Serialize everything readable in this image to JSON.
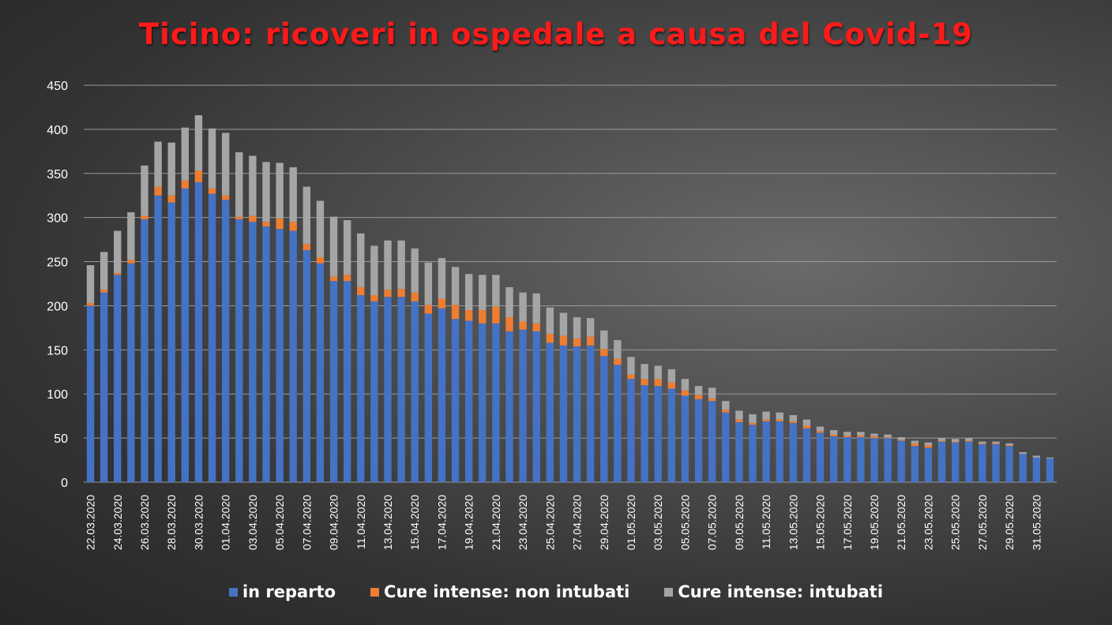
{
  "colors": {
    "title": "#ff1a1a",
    "grid": "#9a9a9a",
    "axis_text": "#ffffff",
    "in_reparto": "#4472c4",
    "non_intubati": "#ed7d31",
    "intubati": "#a5a5a5"
  },
  "chart_data": {
    "type": "bar",
    "stacked": true,
    "title": "Ticino: ricoveri in ospedale a causa del Covid-19",
    "xlabel": "",
    "ylabel": "",
    "ylim": [
      0,
      450
    ],
    "yticks": [
      0,
      50,
      100,
      150,
      200,
      250,
      300,
      350,
      400,
      450
    ],
    "grid": true,
    "legend_position": "bottom",
    "x_tick_labels": [
      "22.03.2020",
      "24.03.2020",
      "26.03.2020",
      "28.03.2020",
      "30.03.2020",
      "01.04.2020",
      "03.04.2020",
      "05.04.2020",
      "07.04.2020",
      "09.04.2020",
      "11.04.2020",
      "13.04.2020",
      "15.04.2020",
      "17.04.2020",
      "19.04.2020",
      "21.04.2020",
      "23.04.2020",
      "25.04.2020",
      "27.04.2020",
      "29.04.2020",
      "01.05.2020",
      "03.05.2020",
      "05.05.2020",
      "07.05.2020",
      "09.05.2020",
      "11.05.2020",
      "13.05.2020",
      "15.05.2020",
      "17.05.2020",
      "19.05.2020",
      "21.05.2020",
      "23.05.2020",
      "25.05.2020",
      "27.05.2020",
      "29.05.2020",
      "31.05.2020"
    ],
    "categories": [
      "22.03.2020",
      "23.03.2020",
      "24.03.2020",
      "25.03.2020",
      "26.03.2020",
      "27.03.2020",
      "28.03.2020",
      "29.03.2020",
      "30.03.2020",
      "31.03.2020",
      "01.04.2020",
      "02.04.2020",
      "03.04.2020",
      "04.04.2020",
      "05.04.2020",
      "06.04.2020",
      "07.04.2020",
      "08.04.2020",
      "09.04.2020",
      "10.04.2020",
      "11.04.2020",
      "12.04.2020",
      "13.04.2020",
      "14.04.2020",
      "15.04.2020",
      "16.04.2020",
      "17.04.2020",
      "18.04.2020",
      "19.04.2020",
      "20.04.2020",
      "21.04.2020",
      "22.04.2020",
      "23.04.2020",
      "24.04.2020",
      "25.04.2020",
      "26.04.2020",
      "27.04.2020",
      "28.04.2020",
      "29.04.2020",
      "30.04.2020",
      "01.05.2020",
      "02.05.2020",
      "03.05.2020",
      "04.05.2020",
      "05.05.2020",
      "06.05.2020",
      "07.05.2020",
      "08.05.2020",
      "09.05.2020",
      "10.05.2020",
      "11.05.2020",
      "12.05.2020",
      "13.05.2020",
      "14.05.2020",
      "15.05.2020",
      "16.05.2020",
      "17.05.2020",
      "18.05.2020",
      "19.05.2020",
      "20.05.2020",
      "21.05.2020",
      "22.05.2020",
      "23.05.2020",
      "24.05.2020",
      "25.05.2020",
      "26.05.2020",
      "27.05.2020",
      "28.05.2020",
      "29.05.2020",
      "30.05.2020",
      "31.05.2020",
      "01.06.2020"
    ],
    "series": [
      {
        "name": "in reparto",
        "values": [
          200,
          215,
          235,
          248,
          298,
          325,
          317,
          333,
          340,
          327,
          320,
          298,
          295,
          290,
          287,
          285,
          263,
          248,
          228,
          228,
          212,
          205,
          210,
          210,
          205,
          191,
          197,
          185,
          183,
          180,
          180,
          171,
          173,
          171,
          158,
          155,
          154,
          155,
          143,
          133,
          117,
          110,
          109,
          106,
          98,
          94,
          92,
          79,
          68,
          65,
          69,
          69,
          67,
          61,
          56,
          52,
          51,
          51,
          50,
          50,
          47,
          41,
          39,
          46,
          45,
          46,
          43,
          43,
          41,
          32,
          28,
          27
        ]
      },
      {
        "name": "Cure intense: non intubati",
        "values": [
          3,
          3,
          2,
          4,
          4,
          10,
          8,
          9,
          13,
          6,
          5,
          3,
          7,
          5,
          12,
          10,
          7,
          7,
          5,
          7,
          9,
          7,
          8,
          9,
          10,
          10,
          11,
          16,
          12,
          15,
          19,
          16,
          9,
          9,
          10,
          11,
          9,
          10,
          8,
          7,
          5,
          7,
          8,
          7,
          6,
          5,
          3,
          3,
          3,
          2,
          2,
          2,
          2,
          3,
          2,
          2,
          2,
          2,
          2,
          1,
          1,
          3,
          3,
          1,
          1,
          1,
          1,
          1,
          1,
          0,
          0,
          0
        ]
      },
      {
        "name": "Cure intense: intubati",
        "values": [
          43,
          43,
          48,
          54,
          57,
          51,
          60,
          60,
          63,
          68,
          71,
          73,
          68,
          68,
          63,
          62,
          65,
          64,
          68,
          62,
          61,
          56,
          56,
          55,
          50,
          48,
          46,
          43,
          41,
          40,
          36,
          34,
          33,
          34,
          30,
          26,
          24,
          21,
          21,
          21,
          20,
          17,
          15,
          15,
          13,
          10,
          12,
          10,
          10,
          10,
          9,
          8,
          7,
          7,
          5,
          5,
          4,
          4,
          3,
          3,
          3,
          3,
          3,
          3,
          3,
          3,
          2,
          2,
          2,
          2,
          2,
          1
        ]
      }
    ]
  }
}
